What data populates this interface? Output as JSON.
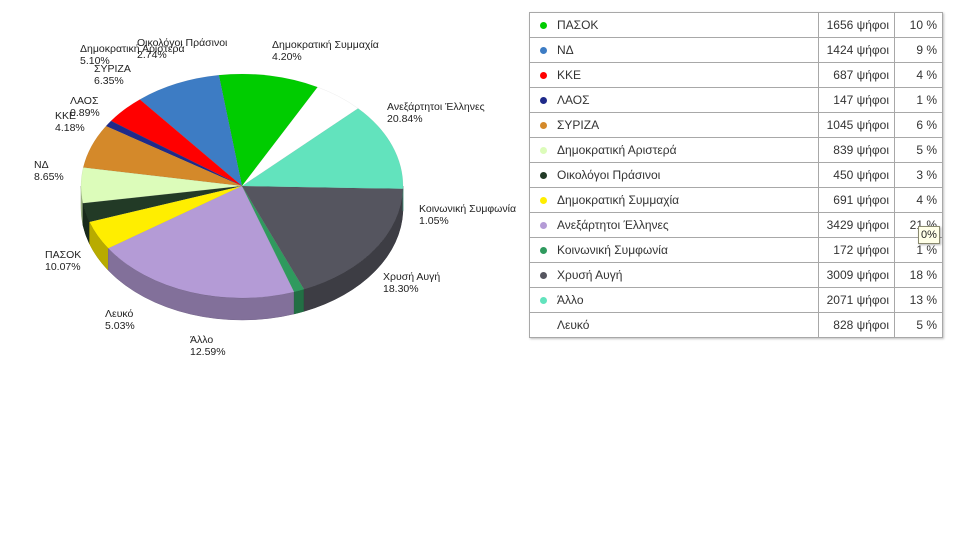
{
  "chart_data": {
    "type": "pie",
    "slices": [
      {
        "label": "ΠΑΣΟΚ",
        "votes": "1656 ψήφοι",
        "table_pct": "10 %",
        "pie_pct": "10.07%",
        "value": 10.07,
        "color": "#00cc00"
      },
      {
        "label": "ΝΔ",
        "votes": "1424 ψήφοι",
        "table_pct": "9 %",
        "pie_pct": "8.65%",
        "value": 8.65,
        "color": "#3d7cc4"
      },
      {
        "label": "ΚΚΕ",
        "votes": "687 ψήφοι",
        "table_pct": "4 %",
        "pie_pct": "4.18%",
        "value": 4.18,
        "color": "#ff0000"
      },
      {
        "label": "ΛΑΟΣ",
        "votes": "147 ψήφοι",
        "table_pct": "1 %",
        "pie_pct": "0.89%",
        "value": 0.89,
        "color": "#1f2a8a"
      },
      {
        "label": "ΣΥΡΙΖΑ",
        "votes": "1045 ψήφοι",
        "table_pct": "6 %",
        "pie_pct": "6.35%",
        "value": 6.35,
        "color": "#d4892a"
      },
      {
        "label": "Δημοκρατική Αριστερά",
        "votes": "839 ψήφοι",
        "table_pct": "5 %",
        "pie_pct": "5.10%",
        "value": 5.1,
        "color": "#dcfcba"
      },
      {
        "label": "Οικολόγοι Πράσινοι",
        "votes": "450 ψήφοι",
        "table_pct": "3 %",
        "pie_pct": "2.74%",
        "value": 2.74,
        "color": "#223a26"
      },
      {
        "label": "Δημοκρατική Συμμαχία",
        "votes": "691 ψήφοι",
        "table_pct": "4 %",
        "pie_pct": "4.20%",
        "value": 4.2,
        "color": "#ffee00"
      },
      {
        "label": "Ανεξάρτητοι Έλληνες",
        "votes": "3429 ψήφοι",
        "table_pct": "21 %",
        "pie_pct": "20.84%",
        "value": 20.84,
        "color": "#b49bd6"
      },
      {
        "label": "Κοινωνική Συμφωνία",
        "votes": "172 ψήφοι",
        "table_pct": "1 %",
        "pie_pct": "1.05%",
        "value": 1.05,
        "color": "#2f9a5e"
      },
      {
        "label": "Χρυσή Αυγή",
        "votes": "3009 ψήφοι",
        "table_pct": "18 %",
        "pie_pct": "18.30%",
        "value": 18.3,
        "color": "#55555f"
      },
      {
        "label": "Άλλο",
        "votes": "2071 ψήφοι",
        "table_pct": "13 %",
        "pie_pct": "12.59%",
        "value": 12.59,
        "color": "#62e3bd"
      },
      {
        "label": "Λευκό",
        "votes": "828 ψήφοι",
        "table_pct": "5 %",
        "pie_pct": "5.03%",
        "value": 5.03,
        "color": "#ffffff"
      }
    ],
    "tooltip_text": "0%"
  }
}
